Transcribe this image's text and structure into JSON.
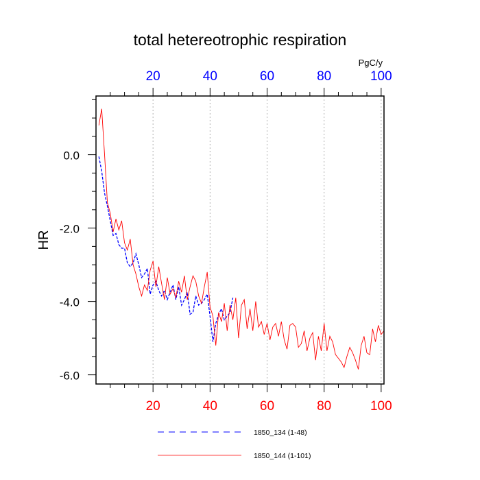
{
  "chart_data": {
    "type": "line",
    "title": "total hetereotrophic respiration",
    "ylabel": "HR",
    "units": "PgC/y",
    "xlim": [
      0,
      101
    ],
    "ylim": [
      -6.25,
      1.6
    ],
    "xticks": [
      20,
      40,
      60,
      80,
      100
    ],
    "xtick_labels": [
      "20",
      "40",
      "60",
      "80",
      "100"
    ],
    "yticks": [
      0.0,
      -2.0,
      -4.0,
      -6.0
    ],
    "ytick_labels": [
      "0.0",
      "-2.0",
      "-4.0",
      "-6.0"
    ],
    "x_label_color_bottom": "#ff0000",
    "x_label_color_top": "#0000ff",
    "grid": "vertical dashed",
    "series": [
      {
        "name": "1850_134 (1-48)",
        "color": "#0000ff",
        "style": "dashed",
        "x": [
          1,
          2,
          3,
          4,
          5,
          6,
          7,
          8,
          9,
          10,
          11,
          12,
          13,
          14,
          15,
          16,
          17,
          18,
          19,
          20,
          21,
          22,
          23,
          24,
          25,
          26,
          27,
          28,
          29,
          30,
          31,
          32,
          33,
          34,
          35,
          36,
          37,
          38,
          39,
          40,
          41,
          42,
          43,
          44,
          45,
          46,
          47,
          48
        ],
        "values": [
          -0.05,
          -0.45,
          -1.05,
          -1.4,
          -1.8,
          -2.2,
          -2.15,
          -2.45,
          -2.55,
          -2.55,
          -2.95,
          -3.05,
          -2.95,
          -2.7,
          -3.0,
          -3.35,
          -3.25,
          -3.1,
          -3.8,
          -3.55,
          -3.45,
          -3.7,
          -3.85,
          -3.7,
          -3.95,
          -3.75,
          -3.55,
          -3.95,
          -3.6,
          -4.1,
          -3.95,
          -3.75,
          -4.35,
          -4.3,
          -3.85,
          -4.1,
          -4.05,
          -3.95,
          -3.8,
          -4.4,
          -5.1,
          -4.6,
          -4.35,
          -4.2,
          -4.5,
          -4.4,
          -4.3,
          -3.9
        ]
      },
      {
        "name": "1850_144 (1-101)",
        "color": "#ff0000",
        "style": "solid",
        "x": [
          1,
          2,
          3,
          4,
          5,
          6,
          7,
          8,
          9,
          10,
          11,
          12,
          13,
          14,
          15,
          16,
          17,
          18,
          19,
          20,
          21,
          22,
          23,
          24,
          25,
          26,
          27,
          28,
          29,
          30,
          31,
          32,
          33,
          34,
          35,
          36,
          37,
          38,
          39,
          40,
          41,
          42,
          43,
          44,
          45,
          46,
          47,
          48,
          49,
          50,
          51,
          52,
          53,
          54,
          55,
          56,
          57,
          58,
          59,
          60,
          61,
          62,
          63,
          64,
          65,
          66,
          67,
          68,
          69,
          70,
          71,
          72,
          73,
          74,
          75,
          76,
          77,
          78,
          79,
          80,
          81,
          82,
          83,
          84,
          85,
          86,
          87,
          88,
          89,
          90,
          91,
          92,
          93,
          94,
          95,
          96,
          97,
          98,
          99,
          100,
          101
        ],
        "values": [
          0.8,
          1.25,
          0.0,
          -1.3,
          -1.6,
          -2.1,
          -1.75,
          -2.05,
          -1.8,
          -2.4,
          -2.6,
          -2.3,
          -3.0,
          -3.25,
          -3.6,
          -3.85,
          -3.55,
          -3.7,
          -3.15,
          -2.9,
          -3.6,
          -3.05,
          -3.5,
          -3.95,
          -3.35,
          -3.8,
          -3.65,
          -3.9,
          -3.45,
          -3.75,
          -3.3,
          -3.95,
          -3.6,
          -3.3,
          -3.45,
          -3.85,
          -4.05,
          -3.6,
          -3.2,
          -4.15,
          -4.4,
          -5.2,
          -4.3,
          -4.55,
          -4.05,
          -4.8,
          -4.1,
          -4.5,
          -3.9,
          -5.0,
          -4.1,
          -3.95,
          -4.75,
          -4.2,
          -4.8,
          -4.0,
          -4.7,
          -4.55,
          -4.9,
          -4.6,
          -5.05,
          -4.7,
          -4.6,
          -4.95,
          -4.55,
          -5.05,
          -5.3,
          -4.65,
          -4.6,
          -4.7,
          -5.25,
          -5.15,
          -4.8,
          -5.35,
          -5.0,
          -4.85,
          -5.6,
          -4.95,
          -5.35,
          -4.6,
          -5.35,
          -4.95,
          -5.1,
          -5.45,
          -5.55,
          -5.65,
          -5.8,
          -5.5,
          -5.25,
          -5.4,
          -5.6,
          -5.85,
          -5.2,
          -4.95,
          -5.4,
          -5.45,
          -4.75,
          -5.1,
          -4.65,
          -4.9,
          -4.8
        ]
      }
    ]
  }
}
